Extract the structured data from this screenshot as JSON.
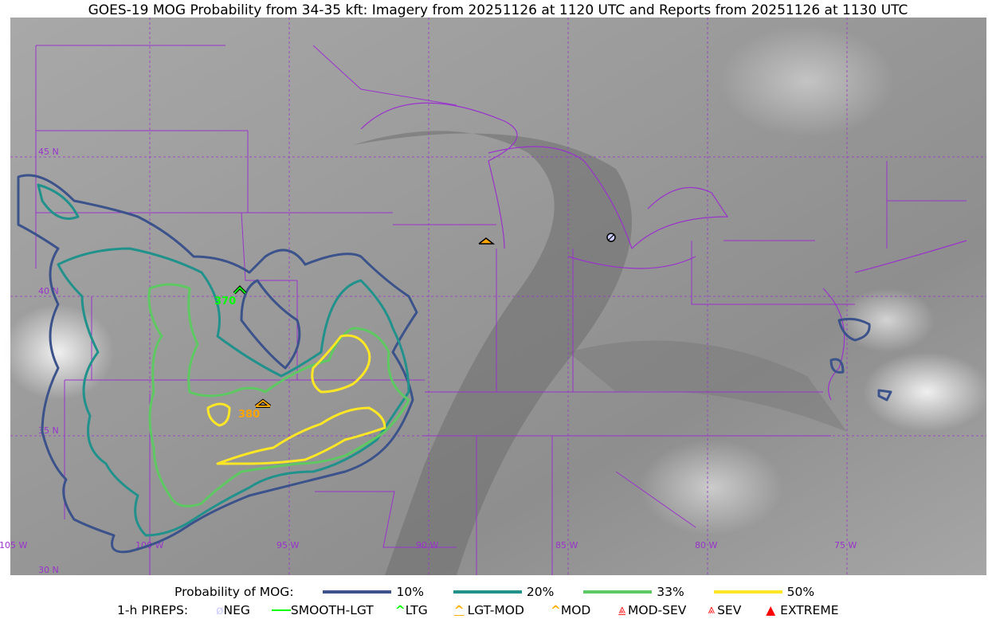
{
  "title": "GOES-19 MOG Probability from 34-35 kft: Imagery from 20251126 at 1120 UTC and Reports from 20251126 at 1130 UTC",
  "map": {
    "lat_labels": [
      "45 N",
      "40 N",
      "35 N",
      "30 N"
    ],
    "lon_labels": [
      "105 W",
      "100 W",
      "95 W",
      "90 W",
      "85 W",
      "80 W",
      "75 W"
    ],
    "grid_color": "#9933cc",
    "reports": [
      {
        "type": "LTG",
        "label": "370",
        "color": "#00ff00"
      },
      {
        "type": "LGT-MOD",
        "label": "380",
        "color": "#ffa500"
      },
      {
        "type": "LGT-MOD",
        "label": "",
        "color": "#ffa500"
      },
      {
        "type": "NEG",
        "label": "",
        "color": "#ccccff"
      }
    ]
  },
  "legend": {
    "prob_title": "Probability of MOG:",
    "prob_levels": [
      {
        "label": "10%",
        "color": "#3b528b"
      },
      {
        "label": "20%",
        "color": "#21918c"
      },
      {
        "label": "33%",
        "color": "#5ec962"
      },
      {
        "label": "50%",
        "color": "#fde725"
      }
    ],
    "pirep_title": "1-h PIREPS:",
    "pireps": [
      {
        "label": "NEG",
        "icon": "neg-icon",
        "color": "#ccccff"
      },
      {
        "label": "SMOOTH-LGT",
        "icon": "line-icon",
        "color": "#00ff00"
      },
      {
        "label": "LTG",
        "icon": "caret-icon",
        "color": "#00ff00"
      },
      {
        "label": "LGT-MOD",
        "icon": "caret-bar-icon",
        "color": "#ffb000"
      },
      {
        "label": "MOD",
        "icon": "caret-icon",
        "color": "#ffb000"
      },
      {
        "label": "MOD-SEV",
        "icon": "double-caret-bar-icon",
        "color": "#ff2020"
      },
      {
        "label": "SEV",
        "icon": "double-caret-icon",
        "color": "#ff2020"
      },
      {
        "label": "EXTREME",
        "icon": "triangle-icon",
        "color": "#ff0000"
      }
    ]
  }
}
